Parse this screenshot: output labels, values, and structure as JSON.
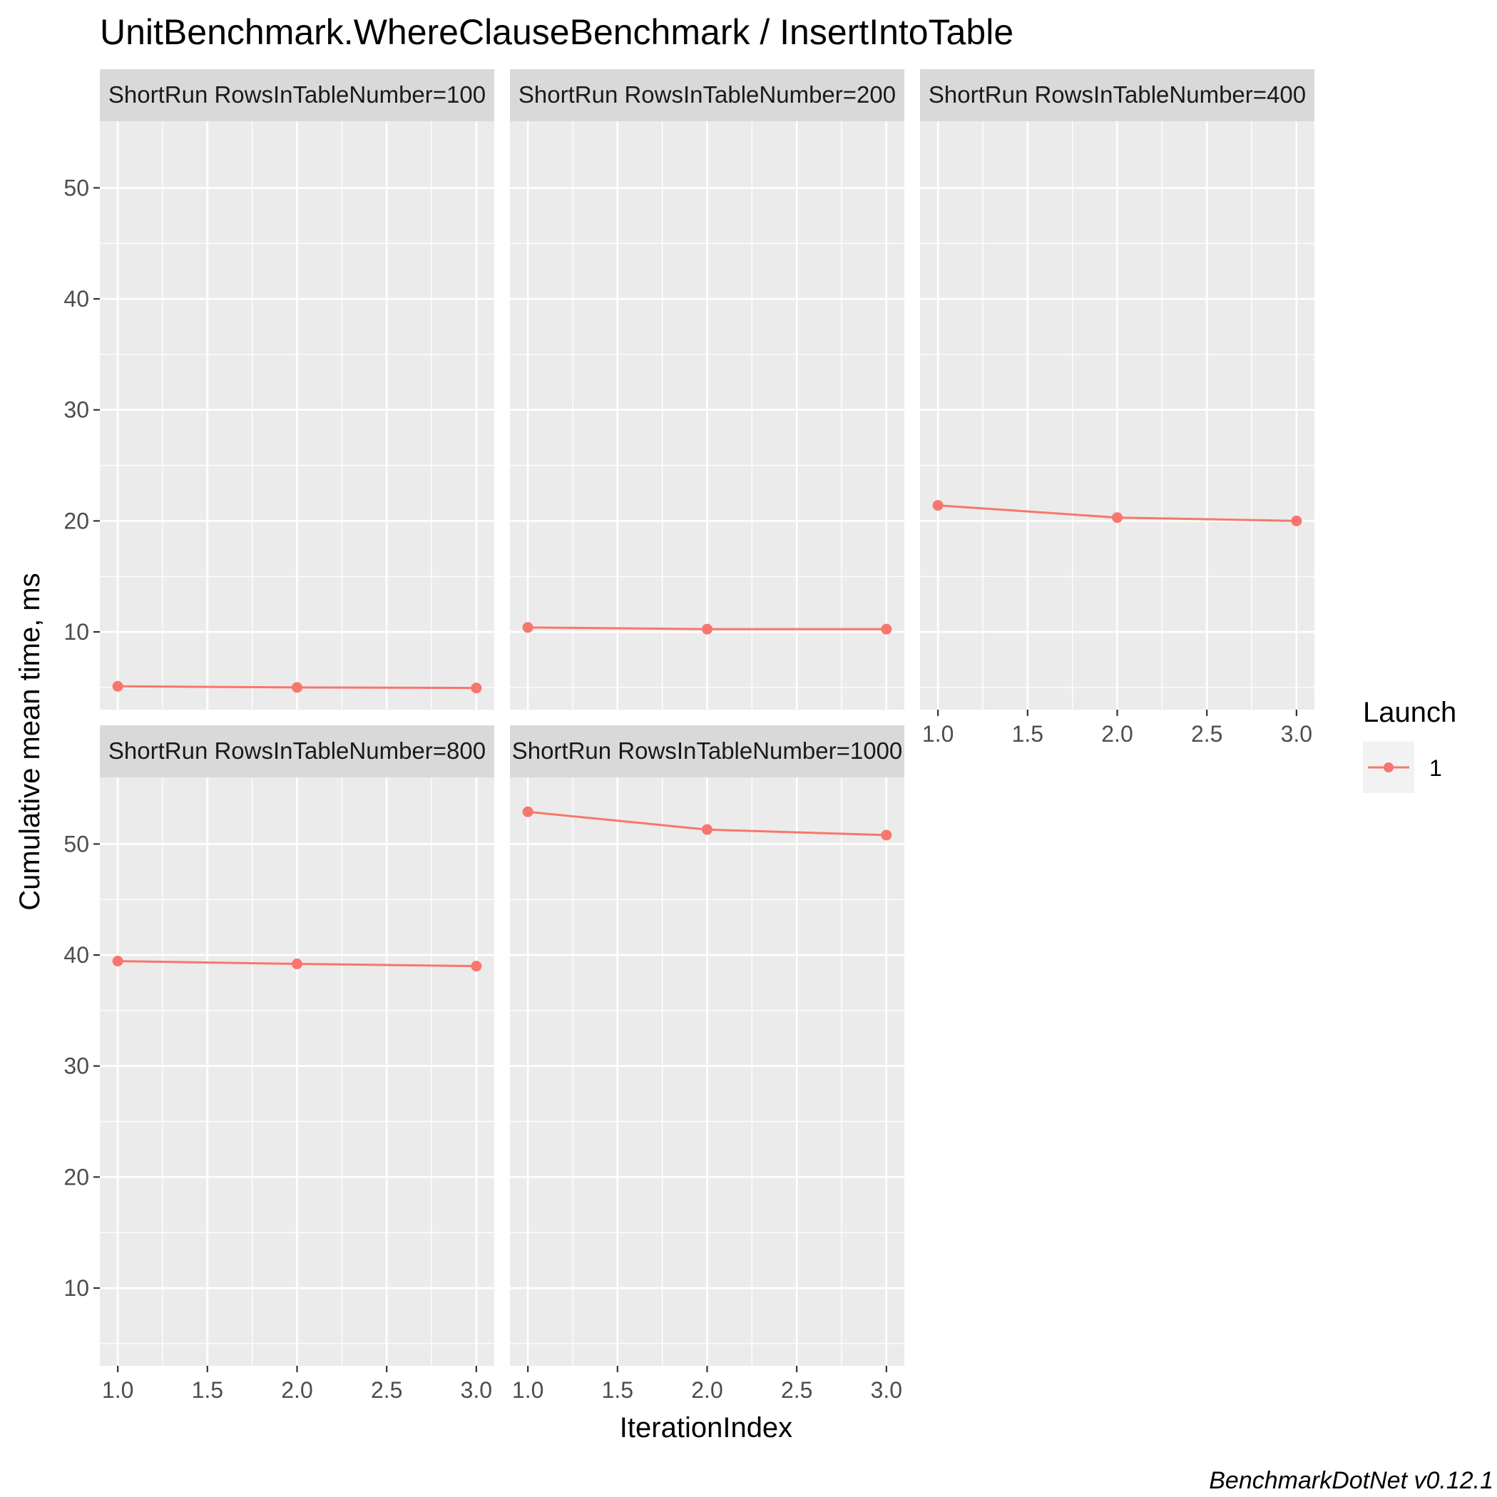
{
  "chart_data": {
    "type": "line",
    "title": "UnitBenchmark.WhereClauseBenchmark / InsertIntoTable",
    "xlabel": "IterationIndex",
    "ylabel": "Cumulative mean time, ms",
    "caption": "BenchmarkDotNet v0.12.1",
    "xlim": [
      0.9,
      3.1
    ],
    "ylim": [
      3,
      56
    ],
    "x_ticks": [
      1.0,
      1.5,
      2.0,
      2.5,
      3.0
    ],
    "x_tick_labels": [
      "1.0",
      "1.5",
      "2.0",
      "2.5",
      "3.0"
    ],
    "y_ticks": [
      10,
      20,
      30,
      40,
      50
    ],
    "y_tick_labels": [
      "10",
      "20",
      "30",
      "40",
      "50"
    ],
    "grid": true,
    "legend": {
      "title": "Launch",
      "position": "right",
      "entries": [
        {
          "label": "1",
          "color": "#F8766D"
        }
      ]
    },
    "series_color": "#F8766D",
    "panels": [
      {
        "strip": "ShortRun RowsInTableNumber=100",
        "series": [
          {
            "name": "1",
            "x": [
              1,
              2,
              3
            ],
            "y": [
              5.1,
              5.0,
              4.95
            ]
          }
        ]
      },
      {
        "strip": "ShortRun RowsInTableNumber=200",
        "series": [
          {
            "name": "1",
            "x": [
              1,
              2,
              3
            ],
            "y": [
              10.4,
              10.25,
              10.25
            ]
          }
        ]
      },
      {
        "strip": "ShortRun RowsInTableNumber=400",
        "series": [
          {
            "name": "1",
            "x": [
              1,
              2,
              3
            ],
            "y": [
              21.4,
              20.3,
              20.0
            ]
          }
        ]
      },
      {
        "strip": "ShortRun RowsInTableNumber=800",
        "series": [
          {
            "name": "1",
            "x": [
              1,
              2,
              3
            ],
            "y": [
              39.45,
              39.2,
              39.0
            ]
          }
        ]
      },
      {
        "strip": "ShortRun RowsInTableNumber=1000",
        "series": [
          {
            "name": "1",
            "x": [
              1,
              2,
              3
            ],
            "y": [
              52.9,
              51.3,
              50.8
            ]
          }
        ]
      }
    ]
  }
}
